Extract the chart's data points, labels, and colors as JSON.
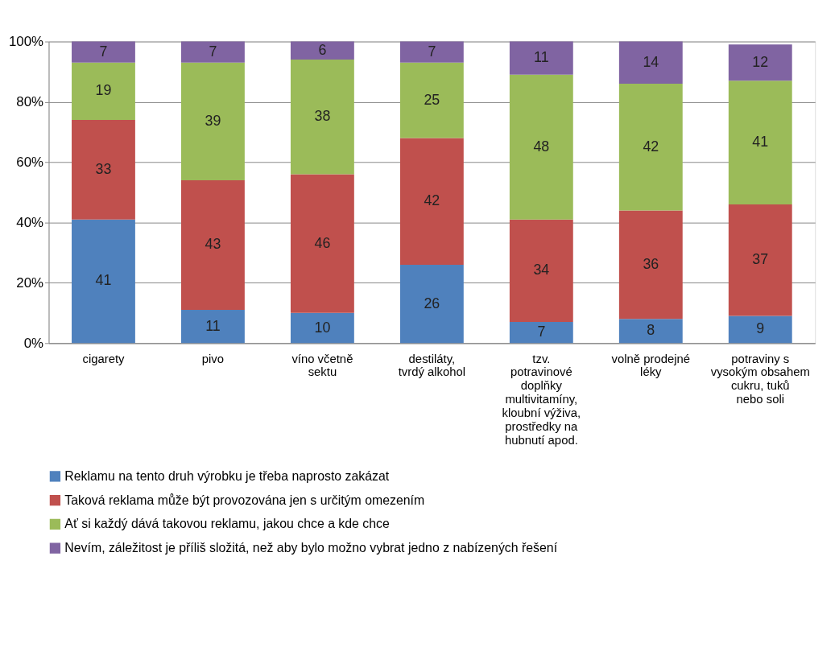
{
  "chart_data": {
    "type": "bar",
    "stacked": true,
    "data_labels": true,
    "legend": "bottom",
    "grid": "y",
    "categories": [
      "cigarety",
      "pivo",
      "víno včetně sektu",
      "destiláty, tvrdý alkohol",
      "tzv. potravinové doplňky multivitamíny, kloubní výživa, prostředky na hubnutí apod.",
      "volně prodejné léky",
      "potraviny s vysokým obsahem cukru, tuků nebo soli"
    ],
    "ylim": [
      0,
      100
    ],
    "yticks": [
      {
        "value": 0,
        "label": "0%"
      },
      {
        "value": 20,
        "label": "20%"
      },
      {
        "value": 40,
        "label": "40%"
      },
      {
        "value": 60,
        "label": "60%"
      },
      {
        "value": 80,
        "label": "80%"
      },
      {
        "value": 100,
        "label": "100%"
      }
    ],
    "series": [
      {
        "name": "Reklamu na tento druh výrobku je třeba naprosto zakázat",
        "color": "#4f81bd",
        "values": [
          41,
          11,
          10,
          26,
          7,
          8,
          9
        ]
      },
      {
        "name": "Taková reklama může být provozována jen s určitým omezením",
        "color": "#c0504d",
        "values": [
          33,
          43,
          46,
          42,
          34,
          36,
          37
        ]
      },
      {
        "name": "Ať si každý dává takovou reklamu, jakou chce a kde chce",
        "color": "#9bbb59",
        "values": [
          19,
          39,
          38,
          25,
          48,
          42,
          41
        ]
      },
      {
        "name": "Nevím, záležitost je příliš složitá, než aby bylo možno vybrat jedno z nabízených řešení",
        "color": "#8064a2",
        "values": [
          7,
          7,
          6,
          7,
          11,
          14,
          12
        ]
      }
    ]
  }
}
